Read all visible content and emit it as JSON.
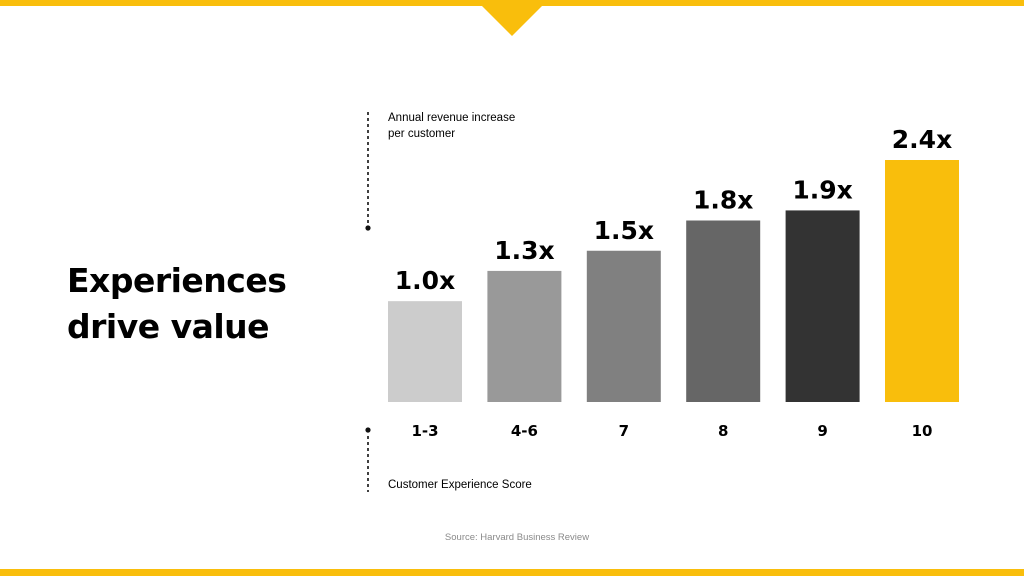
{
  "colors": {
    "accent": "#F9BE0C",
    "bars": [
      "#cccccc",
      "#999999",
      "#808080",
      "#666666",
      "#333333",
      "#F9BE0C"
    ]
  },
  "slide": {
    "headline_line1": "Experiences",
    "headline_line2": "drive value",
    "source": "Source: Harvard Business Review"
  },
  "chart_data": {
    "type": "bar",
    "categories": [
      "1-3",
      "4-6",
      "7",
      "8",
      "9",
      "10"
    ],
    "values": [
      1.0,
      1.3,
      1.5,
      1.8,
      1.9,
      2.4
    ],
    "data_labels": [
      "1.0x",
      "1.3x",
      "1.5x",
      "1.8x",
      "1.9x",
      "2.4x"
    ],
    "ylabel_line1": "Annual revenue increase",
    "ylabel_line2": "per customer",
    "xlabel": "Customer Experience Score",
    "ylim": [
      0,
      2.4
    ],
    "grid": false,
    "legend": "none"
  }
}
